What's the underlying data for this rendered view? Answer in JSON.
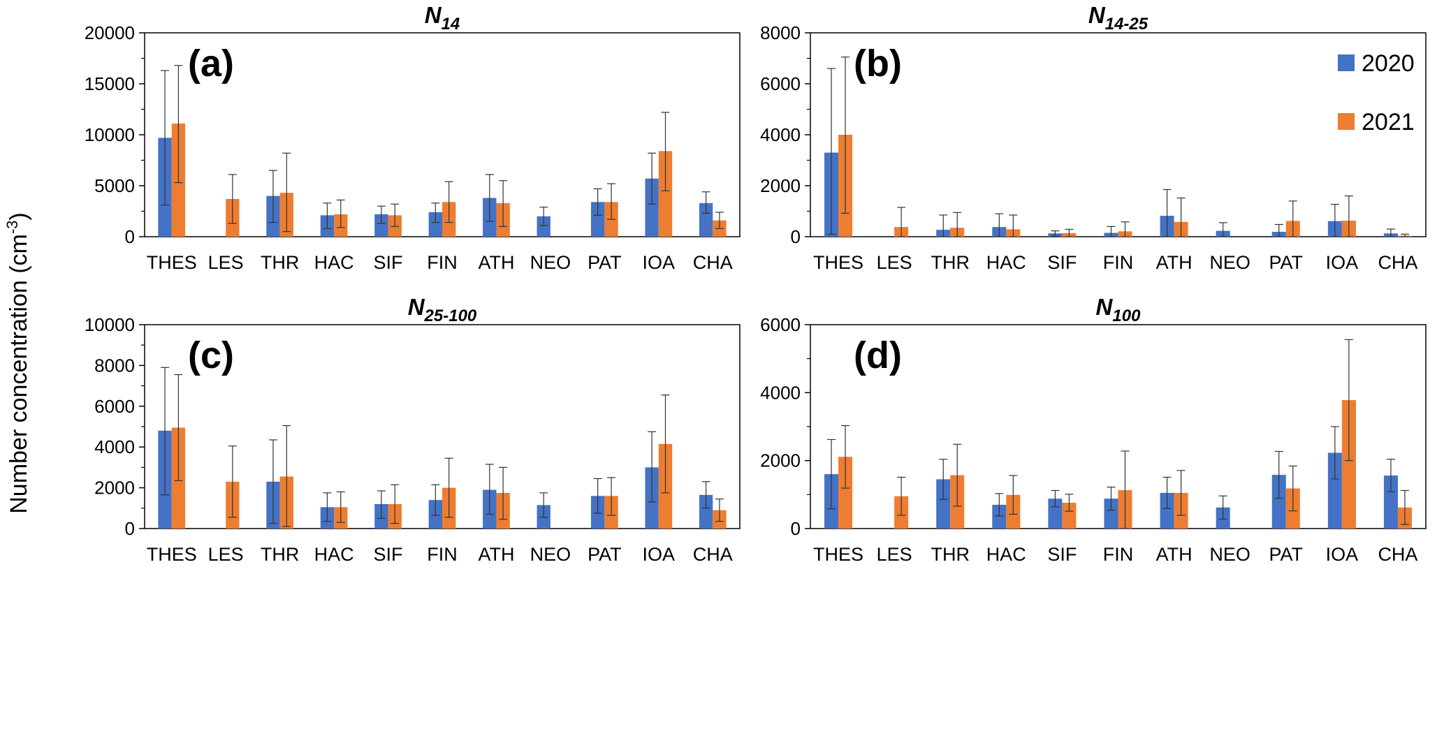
{
  "figure": {
    "ylabel": "Number concentration (cm",
    "ylabel_sup": "-3",
    "ylabel_close": ")"
  },
  "legend": {
    "items": [
      {
        "label": "2020",
        "color": "#4472c4"
      },
      {
        "label": "2021",
        "color": "#ed7d31"
      }
    ],
    "placement": "top-right of panel (b)"
  },
  "chart_data": [
    {
      "type": "bar",
      "panel": "(a)",
      "title": "N",
      "title_sub": "14",
      "categories": [
        "THES",
        "LES",
        "THR",
        "HAC",
        "SIF",
        "FIN",
        "ATH",
        "NEO",
        "PAT",
        "IOA",
        "CHA"
      ],
      "ylim": [
        0,
        20000
      ],
      "yticks": [
        0,
        5000,
        10000,
        15000,
        20000
      ],
      "ytick_labels": [
        "0",
        "5000",
        "10000",
        "15000",
        "20000"
      ],
      "series": [
        {
          "name": "2020",
          "values": [
            9700,
            null,
            4000,
            2100,
            2200,
            2400,
            3800,
            2000,
            3400,
            5700,
            3300
          ],
          "err_upper": [
            16300,
            null,
            6500,
            3300,
            3000,
            3300,
            6100,
            2900,
            4700,
            8200,
            4400
          ],
          "err_lower": [
            3100,
            null,
            1400,
            800,
            1300,
            1400,
            1500,
            1100,
            2100,
            3200,
            2300
          ]
        },
        {
          "name": "2021",
          "values": [
            11100,
            3700,
            4300,
            2200,
            2100,
            3400,
            3300,
            null,
            3400,
            8400,
            1600
          ],
          "err_upper": [
            16800,
            6100,
            8200,
            3600,
            3200,
            5400,
            5500,
            null,
            5200,
            12200,
            2400
          ],
          "err_lower": [
            5300,
            1300,
            500,
            900,
            1000,
            1400,
            1000,
            null,
            1700,
            4500,
            800
          ]
        }
      ]
    },
    {
      "type": "bar",
      "panel": "(b)",
      "title": "N",
      "title_sub": "14-25",
      "categories": [
        "THES",
        "LES",
        "THR",
        "HAC",
        "SIF",
        "FIN",
        "ATH",
        "NEO",
        "PAT",
        "IOA",
        "CHA"
      ],
      "ylim": [
        0,
        8000
      ],
      "yticks": [
        0,
        2000,
        4000,
        6000,
        8000
      ],
      "ytick_labels": [
        "0",
        "2000",
        "4000",
        "6000",
        "8000"
      ],
      "series": [
        {
          "name": "2020",
          "values": [
            3300,
            null,
            270,
            380,
            130,
            150,
            820,
            230,
            190,
            610,
            130
          ],
          "err_upper": [
            6600,
            null,
            850,
            900,
            230,
            400,
            1850,
            550,
            480,
            1270,
            300
          ],
          "err_lower": [
            100,
            null,
            0,
            0,
            30,
            0,
            0,
            0,
            0,
            0,
            0
          ]
        },
        {
          "name": "2021",
          "values": [
            4000,
            380,
            350,
            290,
            140,
            210,
            580,
            null,
            620,
            630,
            40
          ],
          "err_upper": [
            7050,
            1150,
            950,
            850,
            290,
            580,
            1520,
            null,
            1400,
            1600,
            100
          ],
          "err_lower": [
            920,
            0,
            0,
            0,
            0,
            0,
            0,
            null,
            0,
            0,
            0
          ]
        }
      ]
    },
    {
      "type": "bar",
      "panel": "(c)",
      "title": "N",
      "title_sub": "25-100",
      "categories": [
        "THES",
        "LES",
        "THR",
        "HAC",
        "SIF",
        "FIN",
        "ATH",
        "NEO",
        "PAT",
        "IOA",
        "CHA"
      ],
      "ylim": [
        0,
        10000
      ],
      "yticks": [
        0,
        2000,
        4000,
        6000,
        8000,
        10000
      ],
      "ytick_labels": [
        "0",
        "2000",
        "4000",
        "6000",
        "8000",
        "10000"
      ],
      "series": [
        {
          "name": "2020",
          "values": [
            4800,
            null,
            2300,
            1050,
            1200,
            1400,
            1900,
            1150,
            1600,
            3000,
            1650
          ],
          "err_upper": [
            7900,
            null,
            4350,
            1750,
            1850,
            2150,
            3150,
            1750,
            2450,
            4750,
            2300
          ],
          "err_lower": [
            1650,
            null,
            250,
            350,
            500,
            650,
            700,
            550,
            750,
            1300,
            1000
          ]
        },
        {
          "name": "2021",
          "values": [
            4950,
            2300,
            2550,
            1050,
            1200,
            2000,
            1750,
            null,
            1600,
            4150,
            900
          ],
          "err_upper": [
            7550,
            4050,
            5050,
            1800,
            2150,
            3450,
            3000,
            null,
            2500,
            6550,
            1450
          ],
          "err_lower": [
            2350,
            550,
            100,
            300,
            250,
            550,
            450,
            null,
            650,
            1750,
            350
          ]
        }
      ]
    },
    {
      "type": "bar",
      "panel": "(d)",
      "title": "N",
      "title_sub": "100",
      "categories": [
        "THES",
        "LES",
        "THR",
        "HAC",
        "SIF",
        "FIN",
        "ATH",
        "NEO",
        "PAT",
        "IOA",
        "CHA"
      ],
      "ylim": [
        0,
        6000
      ],
      "yticks": [
        0,
        2000,
        4000,
        6000
      ],
      "ytick_labels": [
        "0",
        "2000",
        "4000",
        "6000"
      ],
      "series": [
        {
          "name": "2020",
          "values": [
            1600,
            null,
            1450,
            700,
            880,
            880,
            1050,
            620,
            1580,
            2230,
            1560
          ],
          "err_upper": [
            2620,
            null,
            2040,
            1030,
            1120,
            1220,
            1510,
            960,
            2270,
            3000,
            2040
          ],
          "err_lower": [
            580,
            null,
            860,
            370,
            640,
            540,
            590,
            280,
            890,
            1460,
            1080
          ]
        },
        {
          "name": "2021",
          "values": [
            2110,
            950,
            1570,
            990,
            760,
            1130,
            1050,
            null,
            1180,
            3780,
            620
          ],
          "err_upper": [
            3030,
            1510,
            2480,
            1560,
            1010,
            2280,
            1710,
            null,
            1840,
            5560,
            1120
          ],
          "err_lower": [
            1190,
            390,
            660,
            420,
            510,
            0,
            390,
            null,
            520,
            2000,
            120
          ]
        }
      ]
    }
  ]
}
